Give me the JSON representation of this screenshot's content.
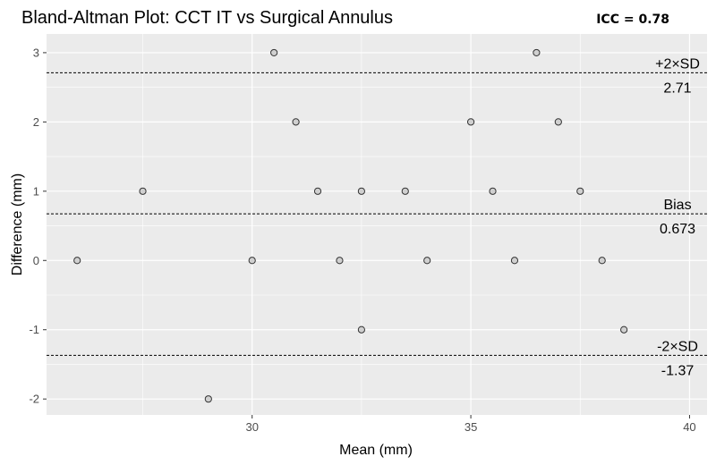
{
  "chart_data": {
    "type": "scatter",
    "title": "Bland-Altman Plot: CCT IT vs Surgical Annulus",
    "annotation": "ICC = 0.78",
    "xlabel": "Mean (mm)",
    "ylabel": "Difference (mm)",
    "xlim": [
      25.3,
      40.4
    ],
    "ylim": [
      -2.23,
      3.27
    ],
    "x_ticks": [
      30,
      35,
      40
    ],
    "y_ticks": [
      -2,
      -1,
      0,
      1,
      2,
      3
    ],
    "x_tick_labels": [
      "30",
      "35",
      "40"
    ],
    "y_tick_labels": [
      "-2",
      "-1",
      "0",
      "1",
      "2",
      "3"
    ],
    "grid": true,
    "points": [
      {
        "x": 26.0,
        "y": 0
      },
      {
        "x": 27.5,
        "y": 1
      },
      {
        "x": 29.0,
        "y": -2
      },
      {
        "x": 30.0,
        "y": 0
      },
      {
        "x": 30.5,
        "y": 3
      },
      {
        "x": 31.0,
        "y": 2
      },
      {
        "x": 31.5,
        "y": 1
      },
      {
        "x": 32.0,
        "y": 0
      },
      {
        "x": 32.5,
        "y": 1
      },
      {
        "x": 32.5,
        "y": -1
      },
      {
        "x": 33.5,
        "y": 1
      },
      {
        "x": 34.0,
        "y": 0
      },
      {
        "x": 35.0,
        "y": 2
      },
      {
        "x": 35.5,
        "y": 1
      },
      {
        "x": 36.0,
        "y": 0
      },
      {
        "x": 36.5,
        "y": 3
      },
      {
        "x": 37.0,
        "y": 2
      },
      {
        "x": 37.5,
        "y": 1
      },
      {
        "x": 38.0,
        "y": 0
      },
      {
        "x": 38.5,
        "y": -1
      }
    ],
    "reference_lines": [
      {
        "label": "+2×SD",
        "value_label": "2.71",
        "y": 2.71
      },
      {
        "label": "Bias",
        "value_label": "0.673",
        "y": 0.673
      },
      {
        "label": "-2×SD",
        "value_label": "-1.37",
        "y": -1.37
      }
    ],
    "colors": {
      "panel_bg": "#ebebeb",
      "grid": "#ffffff",
      "point_fill": "#d0d0d0",
      "point_stroke": "#333333",
      "ref_line": "#000000"
    }
  }
}
